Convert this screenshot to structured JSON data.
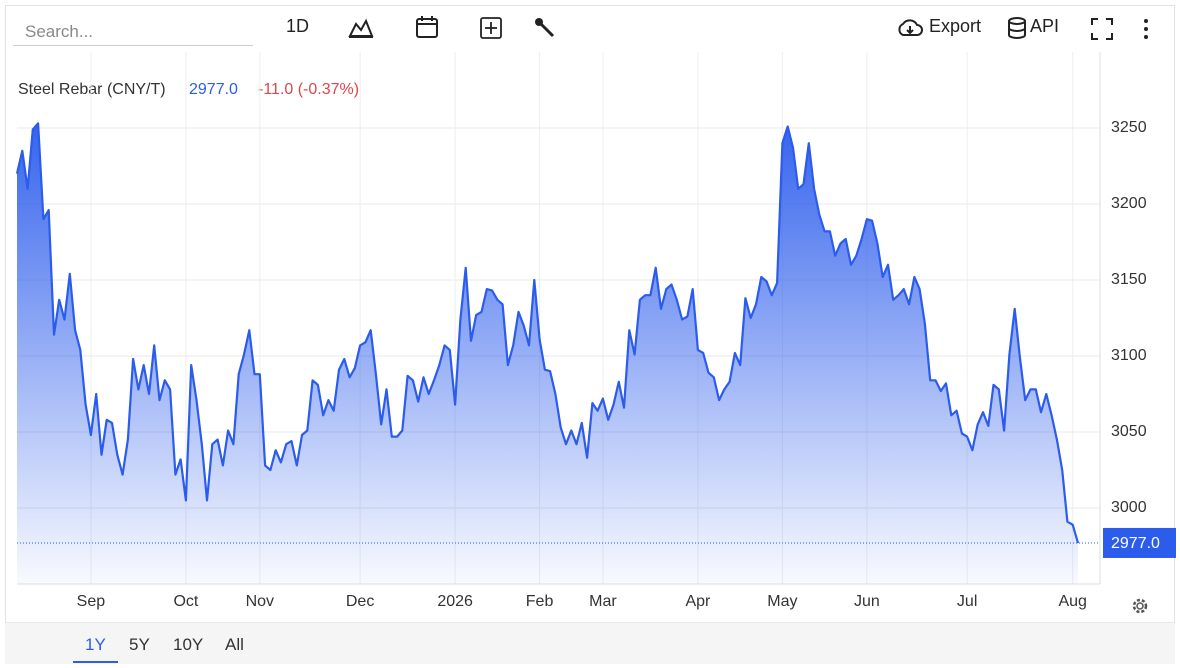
{
  "toolbar": {
    "search_placeholder": "Search...",
    "interval": "1D",
    "export": "Export",
    "api": "API"
  },
  "ranges": {
    "options": [
      "1Y",
      "5Y",
      "10Y",
      "All"
    ],
    "active": "1Y"
  },
  "chart_data": {
    "type": "line",
    "title": "Steel Rebar (CNY/T)",
    "last_label": "2977.0",
    "change": "-11.0 (-0.37%)",
    "color": "#2b5cec",
    "grid": true,
    "values": [
      3220,
      3235,
      3210,
      3249,
      3253,
      3190,
      3196,
      3114,
      3137,
      3124,
      3154,
      3117,
      3104,
      3068,
      3048,
      3075,
      3035,
      3058,
      3056,
      3035,
      3022,
      3045,
      3098,
      3078,
      3094,
      3075,
      3107,
      3071,
      3084,
      3078,
      3022,
      3032,
      3005,
      3094,
      3071,
      3042,
      3005,
      3042,
      3045,
      3028,
      3051,
      3042,
      3088,
      3101,
      3117,
      3088,
      3088,
      3028,
      3025,
      3038,
      3030,
      3042,
      3044,
      3028,
      3048,
      3051,
      3084,
      3081,
      3061,
      3071,
      3064,
      3091,
      3098,
      3086,
      3092,
      3107,
      3109,
      3117,
      3088,
      3055,
      3078,
      3047,
      3047,
      3051,
      3087,
      3084,
      3070,
      3086,
      3075,
      3084,
      3094,
      3107,
      3104,
      3068,
      3124,
      3158,
      3110,
      3127,
      3129,
      3144,
      3143,
      3137,
      3134,
      3094,
      3107,
      3129,
      3120,
      3107,
      3150,
      3111,
      3091,
      3090,
      3075,
      3053,
      3042,
      3051,
      3042,
      3056,
      3033,
      3069,
      3064,
      3072,
      3058,
      3068,
      3083,
      3066,
      3117,
      3101,
      3137,
      3140,
      3140,
      3158,
      3131,
      3144,
      3147,
      3137,
      3124,
      3126,
      3144,
      3104,
      3102,
      3089,
      3086,
      3071,
      3078,
      3083,
      3102,
      3094,
      3138,
      3125,
      3134,
      3152,
      3149,
      3140,
      3148,
      3240,
      3251,
      3237,
      3210,
      3213,
      3240,
      3210,
      3193,
      3182,
      3182,
      3166,
      3174,
      3177,
      3160,
      3166,
      3177,
      3190,
      3189,
      3174,
      3152,
      3160,
      3137,
      3140,
      3144,
      3134,
      3152,
      3144,
      3121,
      3084,
      3084,
      3077,
      3082,
      3061,
      3064,
      3049,
      3047,
      3038,
      3055,
      3063,
      3054,
      3081,
      3078,
      3051,
      3101,
      3131,
      3099,
      3071,
      3078,
      3078,
      3063,
      3075,
      3061,
      3045,
      3025,
      2991,
      2989,
      2977
    ],
    "xlim": [
      0,
      201
    ],
    "xticks": [
      {
        "value": 14,
        "label": "Sep"
      },
      {
        "value": 32,
        "label": "Oct"
      },
      {
        "value": 46,
        "label": "Nov"
      },
      {
        "value": 65,
        "label": "Dec"
      },
      {
        "value": 83,
        "label": "2026"
      },
      {
        "value": 99,
        "label": "Feb"
      },
      {
        "value": 111,
        "label": "Mar"
      },
      {
        "value": 129,
        "label": "Apr"
      },
      {
        "value": 145,
        "label": "May"
      },
      {
        "value": 161,
        "label": "Jun"
      },
      {
        "value": 180,
        "label": "Jul"
      },
      {
        "value": 200,
        "label": "Aug"
      }
    ],
    "ylim": [
      2950,
      3300
    ],
    "yticks": [
      3000,
      3050,
      3100,
      3150,
      3200,
      3250
    ]
  }
}
